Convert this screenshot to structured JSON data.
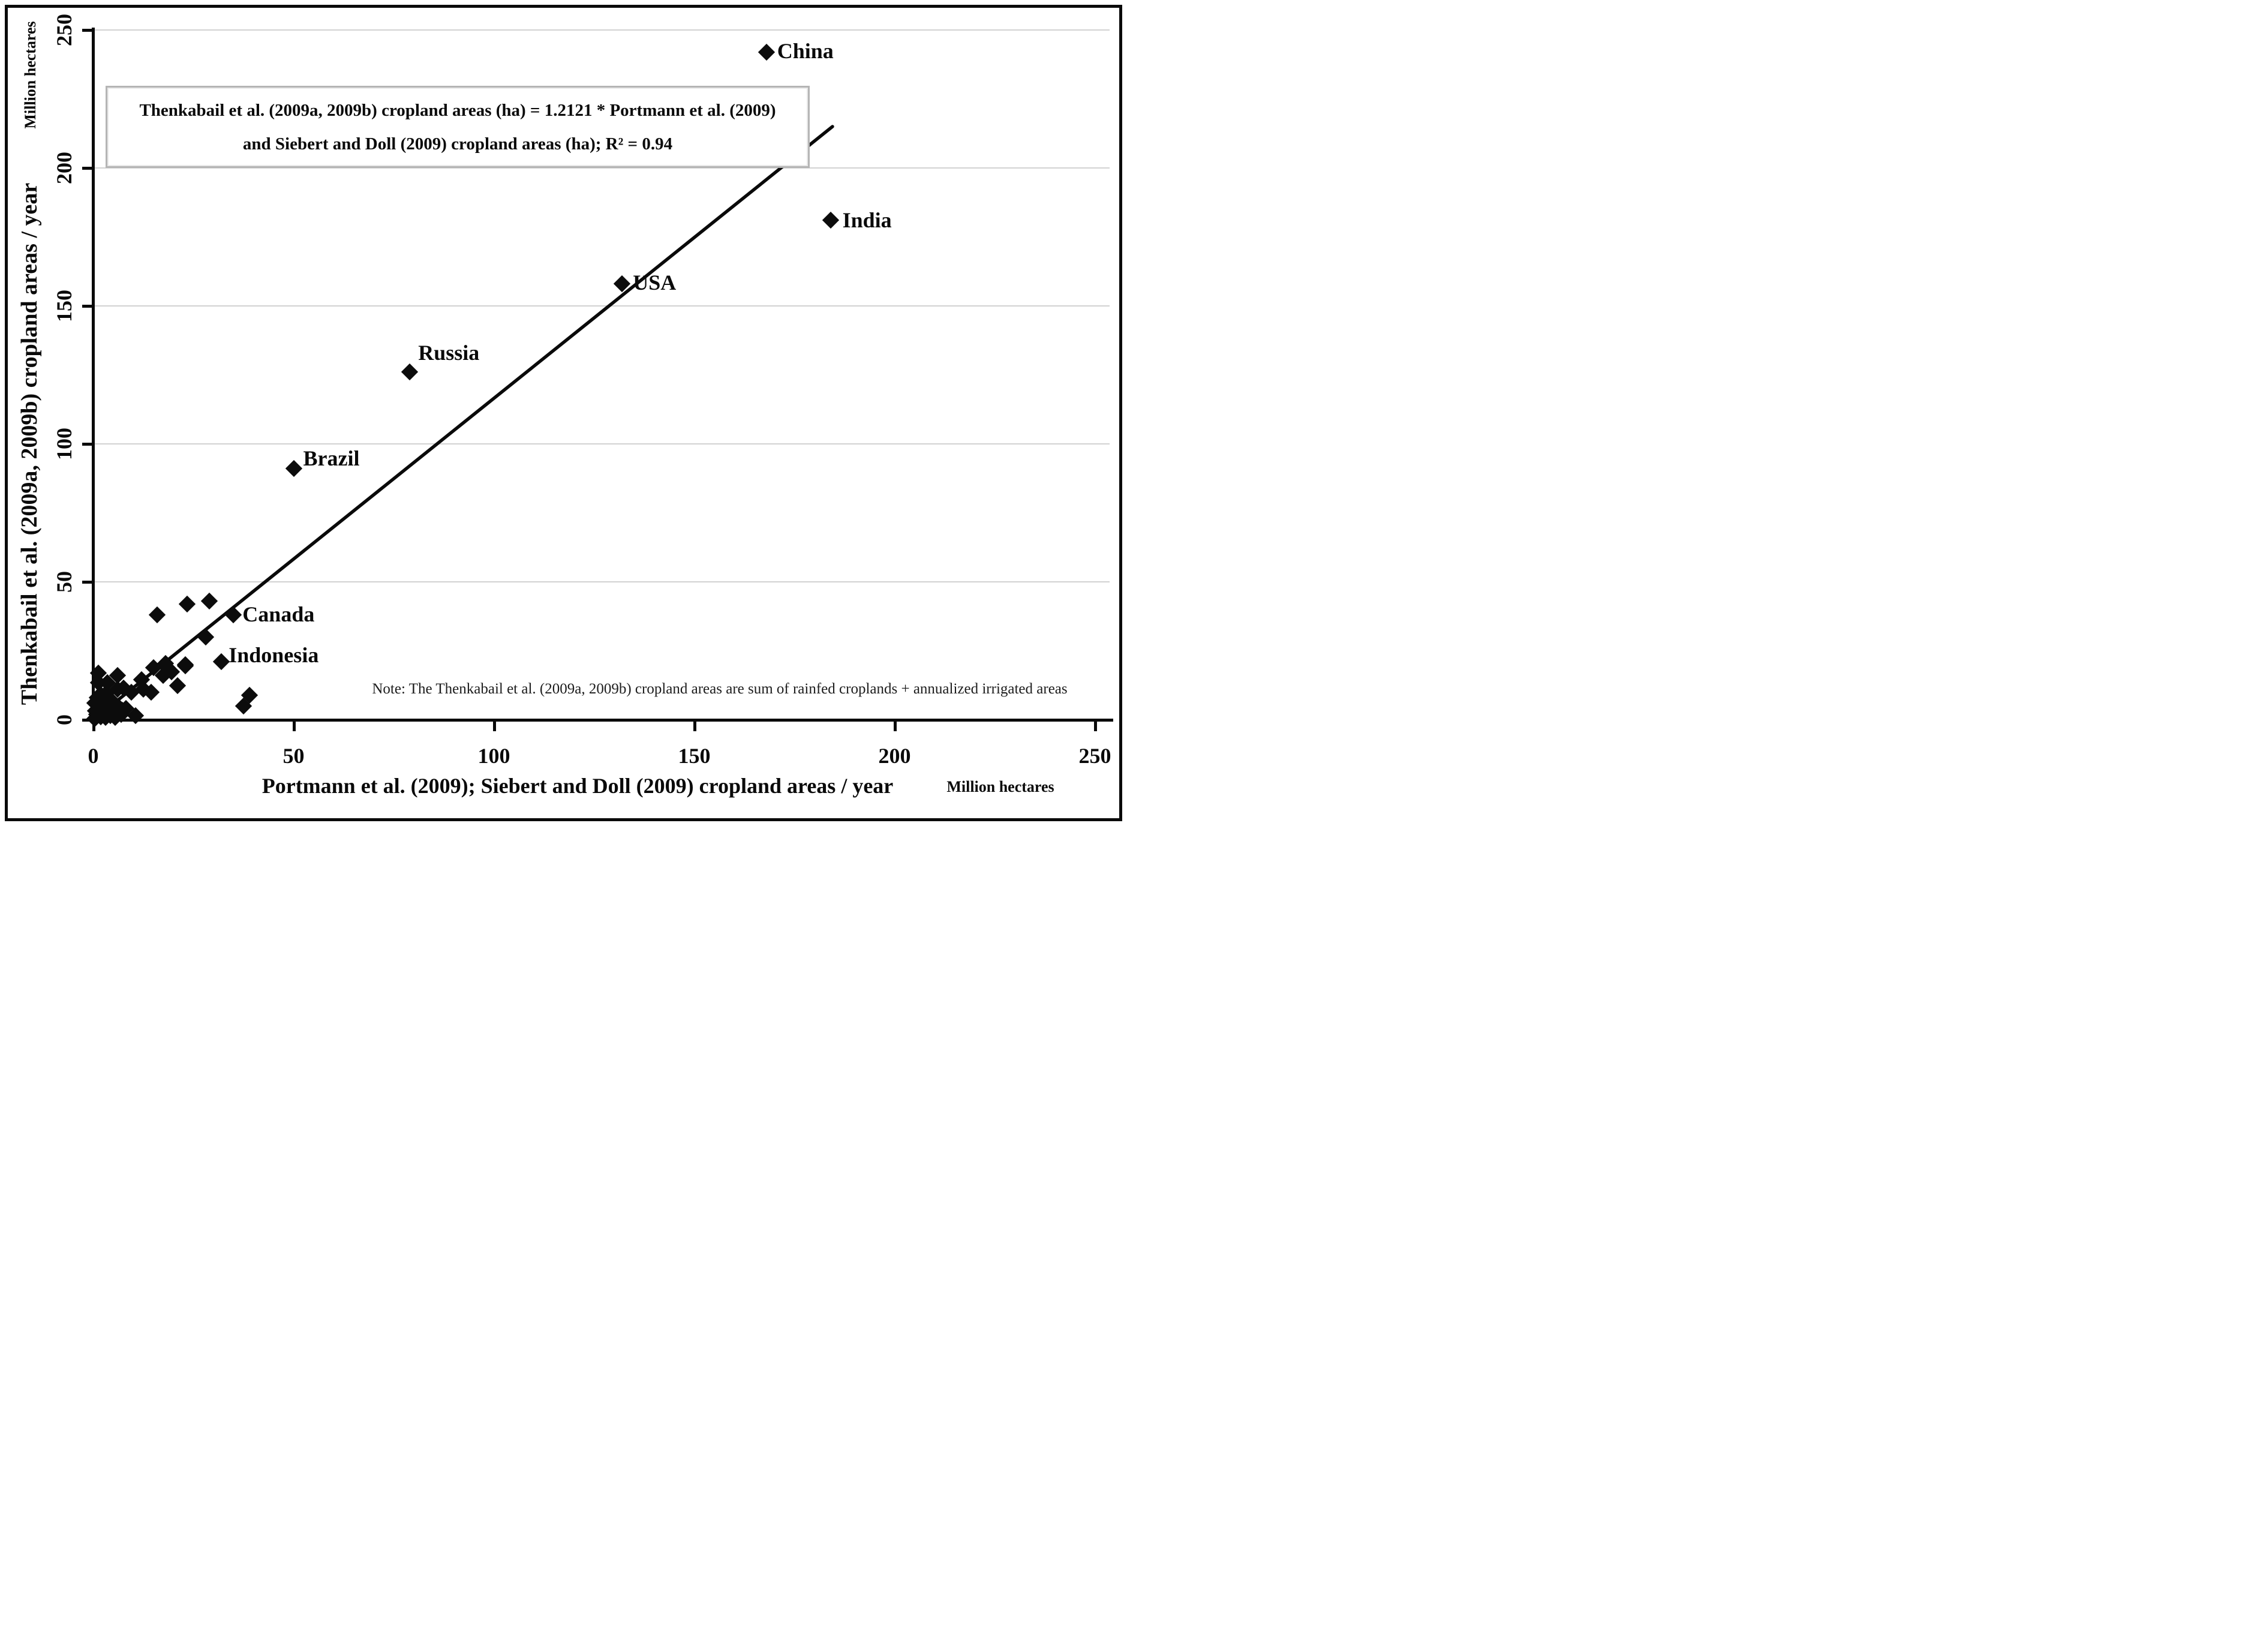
{
  "figure": {
    "equation_line1": "Thenkabail et al. (2009a, 2009b) cropland areas (ha) = 1.2121 * Portmann et al. (2009)",
    "equation_line2": "and Siebert and Doll (2009) cropland areas (ha); R² = 0.94",
    "note": "Note: The Thenkabail et al. (2009a, 2009b) cropland areas are sum of  rainfed  croplands + annualized irrigated areas"
  },
  "axes": {
    "x_title": "Portmann et al. (2009); Siebert and Doll (2009) cropland areas / year",
    "x_unit": "Million hectares",
    "y_title": "Thenkabail et al. (2009a, 2009b) cropland areas / year",
    "y_unit": "Million hectares",
    "tick_values": [
      0,
      50,
      100,
      150,
      200,
      250
    ]
  },
  "chart_data": {
    "type": "scatter",
    "title": "",
    "xlabel": "Portmann et al. (2009); Siebert and Doll (2009) cropland areas / year (Million hectares)",
    "ylabel": "Thenkabail et al. (2009a, 2009b) cropland areas / year (Million hectares)",
    "xlim": [
      0,
      250
    ],
    "ylim": [
      0,
      250
    ],
    "grid": "horizontal-only",
    "gridlines_y": [
      50,
      100,
      150,
      200,
      250
    ],
    "marker": "filled-diamond",
    "marker_color": "#0c0c0c",
    "labeled_points": [
      {
        "name": "China",
        "x": 168,
        "y": 242
      },
      {
        "name": "India",
        "x": 184,
        "y": 181
      },
      {
        "name": "USA",
        "x": 132,
        "y": 158
      },
      {
        "name": "Russia",
        "x": 79,
        "y": 126
      },
      {
        "name": "Brazil",
        "x": 50,
        "y": 91
      },
      {
        "name": "Canada",
        "x": 35,
        "y": 38
      },
      {
        "name": "Indonesia",
        "x": 32,
        "y": 21
      }
    ],
    "unlabeled_points": [
      [
        16,
        38
      ],
      [
        23.5,
        42
      ],
      [
        29,
        43
      ],
      [
        28,
        30
      ],
      [
        23,
        19.5
      ],
      [
        18.5,
        19
      ],
      [
        15,
        19
      ],
      [
        18,
        20.5
      ],
      [
        19.5,
        17.5
      ],
      [
        17.5,
        16
      ],
      [
        21,
        12.5
      ],
      [
        23,
        20
      ],
      [
        1.3,
        17
      ],
      [
        1.3,
        13.5
      ],
      [
        3.5,
        13.5
      ],
      [
        6,
        16
      ],
      [
        2,
        9
      ],
      [
        6,
        11
      ],
      [
        7.5,
        11.5
      ],
      [
        9.5,
        10
      ],
      [
        12,
        14.5
      ],
      [
        12.5,
        11
      ],
      [
        14.5,
        10
      ],
      [
        10.5,
        1.5
      ],
      [
        7,
        2
      ],
      [
        2.5,
        5
      ],
      [
        37.5,
        5
      ],
      [
        39,
        9
      ],
      [
        0.3,
        0.5
      ],
      [
        0.8,
        2
      ],
      [
        1.2,
        4
      ],
      [
        1.8,
        1
      ],
      [
        2.3,
        3
      ],
      [
        3,
        0.8
      ],
      [
        3.6,
        4.3
      ],
      [
        4.3,
        1.5
      ],
      [
        4.9,
        3.2
      ],
      [
        5.5,
        0.9
      ],
      [
        6.3,
        4.6
      ],
      [
        7.2,
        3.4
      ],
      [
        0.4,
        6
      ],
      [
        1.6,
        6.2
      ],
      [
        4.6,
        6.6
      ],
      [
        8.2,
        4.2
      ],
      [
        5.1,
        5.3
      ],
      [
        2.9,
        7.6
      ],
      [
        0.5,
        3.2
      ],
      [
        1,
        8
      ],
      [
        3.2,
        9.5
      ],
      [
        4,
        7.8
      ]
    ],
    "trendline": {
      "x1": 0,
      "y1": 0,
      "x2": 184.5,
      "y2": 215,
      "slope_reported": 1.2121,
      "r_squared": 0.94
    }
  }
}
